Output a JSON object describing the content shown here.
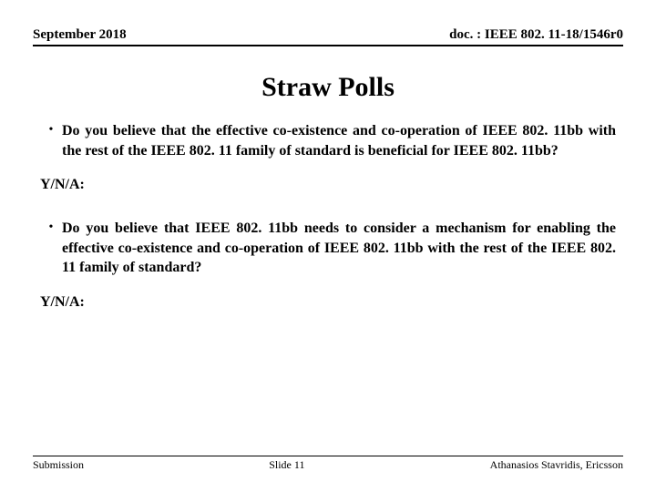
{
  "header": {
    "date": "September 2018",
    "doc": "doc. : IEEE 802. 11-18/1546r0"
  },
  "title": "Straw Polls",
  "polls": [
    {
      "question": "Do you believe that  the effective co-existence and co-operation of IEEE 802. 11bb with the rest of the IEEE 802. 11 family of standard is beneficial for IEEE 802. 11bb?",
      "response": "Y/N/A:"
    },
    {
      "question": "Do you believe that IEEE 802. 11bb needs to consider a mechanism for enabling the effective co-existence and co-operation of IEEE 802. 11bb with the rest of the IEEE 802. 11 family of standard?",
      "response": "Y/N/A:"
    }
  ],
  "footer": {
    "left": "Submission",
    "center": "Slide 11",
    "right": "Athanasios Stavridis, Ericsson"
  },
  "colors": {
    "background": "#ffffff",
    "text": "#000000",
    "rule": "#000000"
  }
}
